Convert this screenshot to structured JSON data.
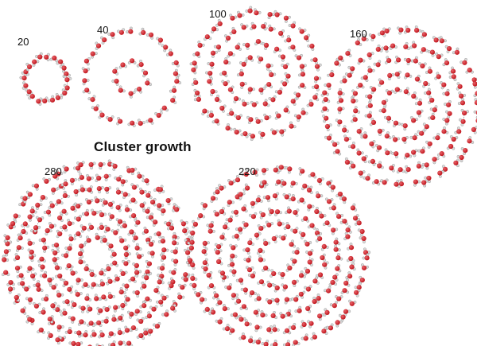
{
  "title": "Cluster growth",
  "clusters": [
    {
      "id": "c20",
      "label": "20",
      "n": 20
    },
    {
      "id": "c40",
      "label": "40",
      "n": 40
    },
    {
      "id": "c100",
      "label": "100",
      "n": 100
    },
    {
      "id": "c160",
      "label": "160",
      "n": 160
    },
    {
      "id": "c280",
      "label": "280",
      "n": 280
    },
    {
      "id": "c220",
      "label": "220",
      "n": 220
    }
  ],
  "colors": {
    "oxygen": "#c0141c",
    "oxygen_highlight": "#e8646a",
    "hydrogen": "#d9d9d9",
    "hydrogen_edge": "#8a8a8a",
    "bond": "#555555"
  }
}
